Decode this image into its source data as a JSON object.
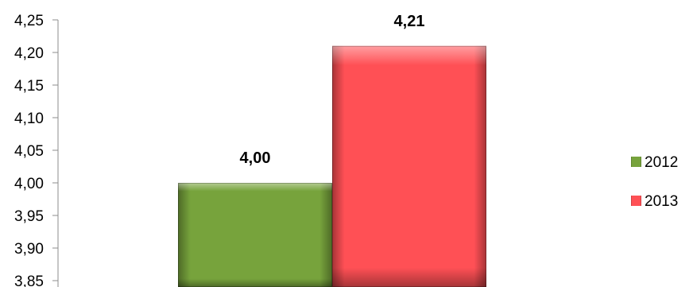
{
  "chart_data": {
    "type": "bar",
    "title": "",
    "xlabel": "",
    "ylabel": "",
    "ylim": [
      3.85,
      4.25
    ],
    "yticks": [
      "3,85",
      "3,90",
      "3,95",
      "4,00",
      "4,05",
      "4,10",
      "4,15",
      "4,20",
      "4,25"
    ],
    "grid": false,
    "legend_position": "right",
    "series": [
      {
        "name": "2012",
        "value": 4.0,
        "label": "4,00",
        "color": "#77a33c"
      },
      {
        "name": "2013",
        "value": 4.21,
        "label": "4,21",
        "color": "#ff5055"
      }
    ]
  }
}
